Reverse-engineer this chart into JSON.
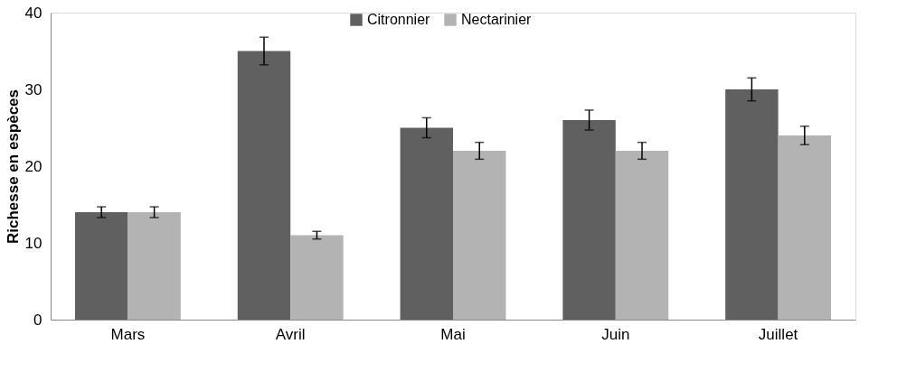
{
  "chart_data": {
    "type": "bar",
    "ylabel": "Richesse en espèces",
    "categories": [
      "Mars",
      "Avril",
      "Mai",
      "Juin",
      "Juillet"
    ],
    "series": [
      {
        "name": "Citronnier",
        "color": "#606060",
        "values": [
          14,
          35,
          25,
          26,
          30
        ],
        "errors": [
          0.7,
          1.8,
          1.3,
          1.3,
          1.5
        ]
      },
      {
        "name": "Nectarinier",
        "color": "#b3b3b3",
        "values": [
          14,
          11,
          22,
          22,
          24
        ],
        "errors": [
          0.7,
          0.5,
          1.1,
          1.1,
          1.2
        ]
      }
    ],
    "ylim": [
      0,
      40
    ],
    "yticks": [
      0,
      10,
      20,
      30,
      40
    ],
    "grid": false,
    "legend": "top"
  }
}
